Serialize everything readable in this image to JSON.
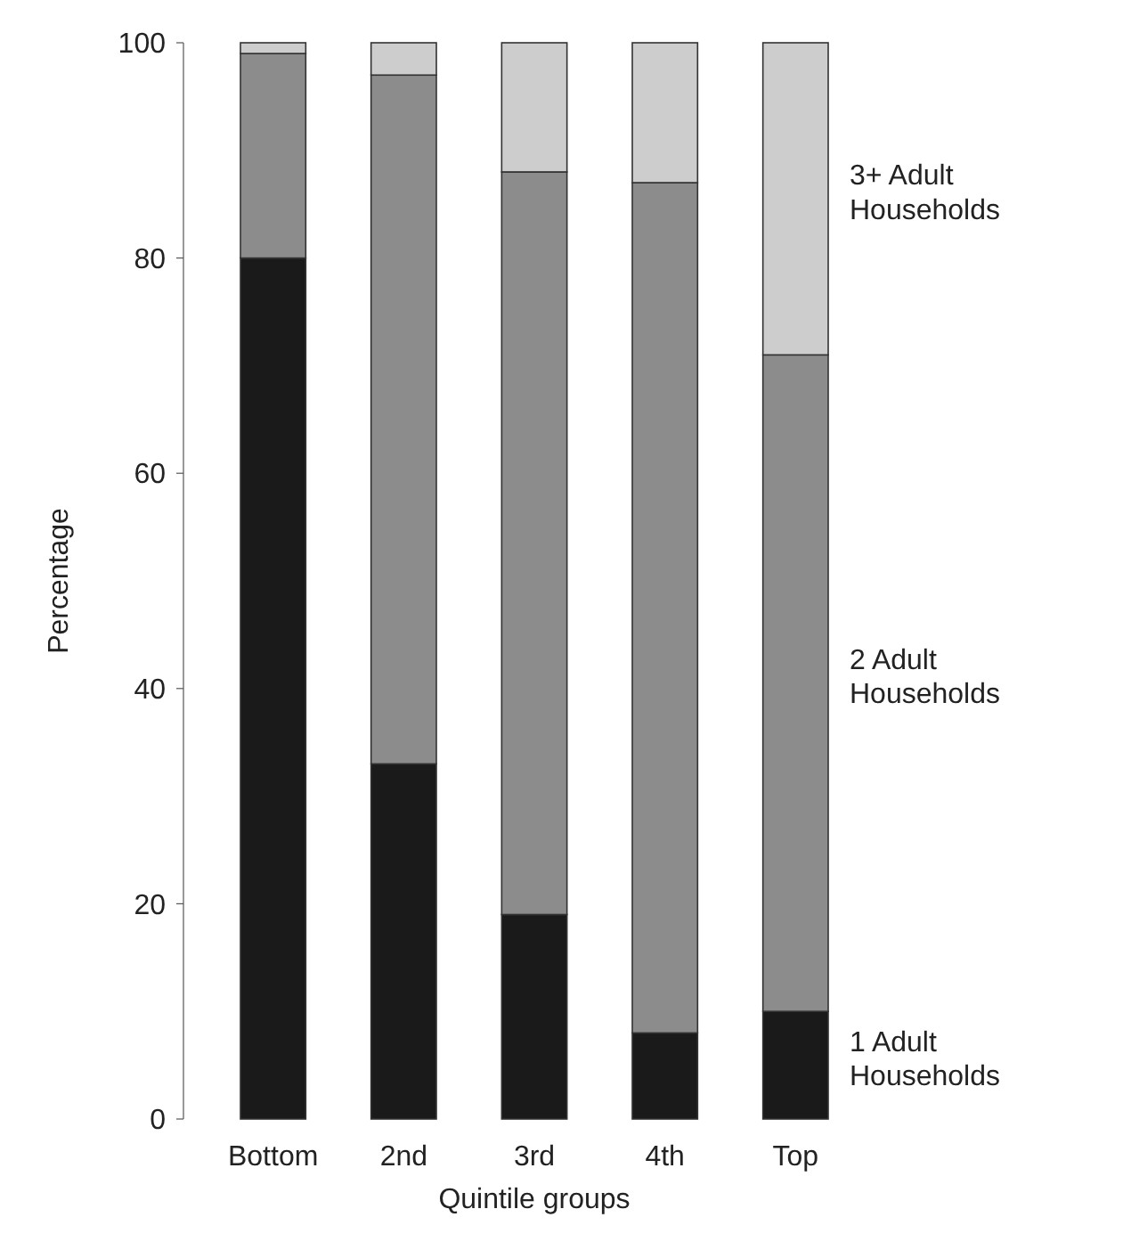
{
  "chart_data": {
    "type": "bar",
    "stacked": true,
    "xlabel": "Quintile groups",
    "ylabel": "Percentage",
    "categories": [
      "Bottom",
      "2nd",
      "3rd",
      "4th",
      "Top"
    ],
    "series": [
      {
        "name": "1 Adult Households",
        "color": "#1a1a1a",
        "values": [
          80,
          33,
          19,
          8,
          10
        ]
      },
      {
        "name": "2 Adult Households",
        "color": "#8c8c8c",
        "values": [
          19,
          64,
          69,
          79,
          61
        ]
      },
      {
        "name": "3+ Adult Households",
        "color": "#cdcdcd",
        "values": [
          1,
          3,
          12,
          13,
          29
        ]
      }
    ],
    "ylim": [
      0,
      100
    ],
    "yticks": [
      0,
      20,
      40,
      60,
      80,
      100
    ],
    "grid": false,
    "legend": "right"
  }
}
